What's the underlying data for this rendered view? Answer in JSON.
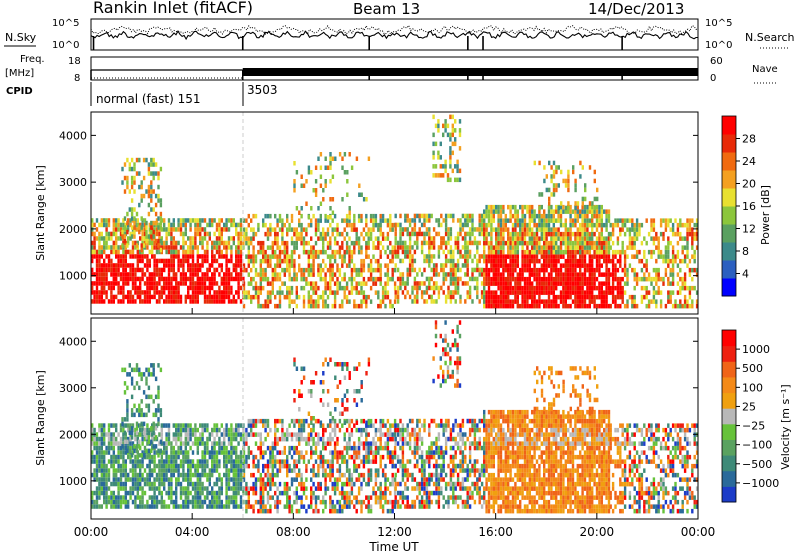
{
  "header": {
    "station": "Rankin Inlet (fitACF)",
    "beam": "Beam 13",
    "date": "14/Dec/2013"
  },
  "side_labels": {
    "nsky": "N.Sky",
    "nsearch": "N.Search",
    "freq_line1": "Freq.",
    "freq_line2": "[MHz]",
    "nave": "Nave",
    "cpid": "CPID"
  },
  "chart_data": [
    {
      "type": "line",
      "name": "noise-panel",
      "y_left_ticks": [
        "10^5",
        "10^0"
      ],
      "y_right_ticks": [
        "10^5",
        "10^0"
      ],
      "series": [
        {
          "name": "N.Sky",
          "style": "solid"
        },
        {
          "name": "N.Search",
          "style": "dotted"
        }
      ],
      "dips_hours": [
        0.1,
        6.0,
        11.0,
        14.9,
        15.5,
        21.0
      ]
    },
    {
      "type": "line",
      "name": "frequency-panel",
      "y_left_ticks": [
        "18",
        "8"
      ],
      "y_right_ticks": [
        "60",
        "0"
      ],
      "cpid_segments": [
        {
          "start_hour": 0,
          "end_hour": 6.0,
          "label": "normal (fast) 151"
        },
        {
          "start_hour": 6.0,
          "end_hour": 24,
          "label": "3503"
        }
      ],
      "dips_hours": [
        6.0,
        11.0,
        14.9,
        15.5,
        21.0
      ]
    },
    {
      "type": "heatmap",
      "name": "power",
      "ylabel": "Slant Range [km]",
      "ylim": [
        180,
        4500
      ],
      "yticks": [
        1000,
        2000,
        3000,
        4000
      ],
      "colorbar_label": "Power [dB]",
      "colorbar_ticks": [
        "28",
        "24",
        "20",
        "16",
        "12",
        "8",
        "4"
      ],
      "colors": [
        "#0000ff",
        "#2b5fc0",
        "#3c8a8a",
        "#5aa060",
        "#8cc63c",
        "#e8e030",
        "#f4a020",
        "#f06a10",
        "#e82a08",
        "#ff0000"
      ]
    },
    {
      "type": "heatmap",
      "name": "velocity",
      "ylabel": "Slant Range [km]",
      "ylim": [
        180,
        4500
      ],
      "yticks": [
        1000,
        2000,
        3000,
        4000
      ],
      "colorbar_label": "Velocity [m s⁻¹]",
      "colorbar_ticks": [
        "1000",
        "500",
        "100",
        "25",
        "−25",
        "−100",
        "−500",
        "−1000"
      ],
      "colors": [
        "#1c3cc8",
        "#2a6a9a",
        "#3e8a78",
        "#5aa260",
        "#66c23a",
        "#b8b8b8",
        "#f0a010",
        "#f48a18",
        "#f06418",
        "#ee2010",
        "#ff0000"
      ]
    }
  ],
  "x_axis": {
    "xlim": [
      0,
      24
    ],
    "ticks": [
      "00:00",
      "04:00",
      "08:00",
      "12:00",
      "16:00",
      "20:00",
      "00:00"
    ],
    "xlabel": "Time UT"
  }
}
